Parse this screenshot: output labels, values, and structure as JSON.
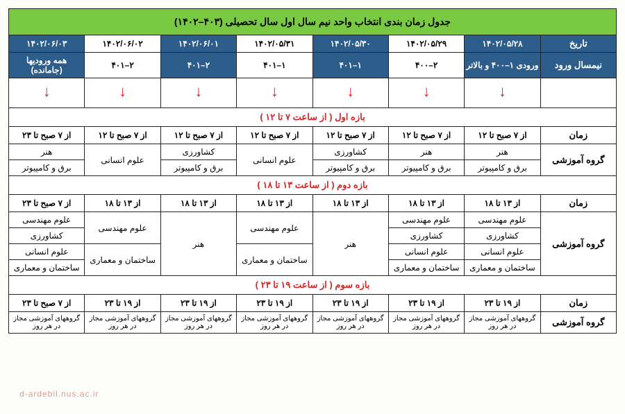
{
  "title": "جدول زمان بندی انتخاب واحد نیم سال اول سال تحصیلی (۴۰۳–۱۴۰۲)",
  "header1_label": "تاریخ",
  "header2_label": "نیمسال ورود",
  "arrow_glyph": "↓",
  "dates": [
    {
      "text": "۱۴۰۲/۰۵/۲۸",
      "dark": true
    },
    {
      "text": "۱۴۰۲/۰۵/۲۹",
      "dark": false
    },
    {
      "text": "۱۴۰۲/۰۵/۳۰",
      "dark": true
    },
    {
      "text": "۱۴۰۲/۰۵/۳۱",
      "dark": false
    },
    {
      "text": "۱۴۰۲/۰۶/۰۱",
      "dark": true
    },
    {
      "text": "۱۴۰۲/۰۶/۰۲",
      "dark": false
    },
    {
      "text": "۱۴۰۲/۰۶/۰۳",
      "dark": true
    }
  ],
  "entries": [
    {
      "text": "ورودی ۱–۴۰۰ و بالاتر",
      "dark": true
    },
    {
      "text": "۲–۴۰۰",
      "dark": false
    },
    {
      "text": "۱–۴۰۱",
      "dark": true
    },
    {
      "text": "۱–۴۰۱",
      "dark": false
    },
    {
      "text": "۲–۴۰۱",
      "dark": true
    },
    {
      "text": "۲–۴۰۱",
      "dark": false
    },
    {
      "text": "همه ورودیها (جامانده)",
      "dark": true
    }
  ],
  "time_label": "زمان",
  "group_label": "گروه آموزشی",
  "section1": {
    "title": "بازه اول ( از ساعت ۷ تا ۱۲ )",
    "times": [
      "از ۷ صبح تا ۱۲",
      "از ۷ صبح تا ۱۲",
      "از ۷ صبح تا ۱۲",
      "از ۷ صبح تا ۱۲",
      "از ۷ صبح تا ۱۲",
      "از ۷ صبح تا ۱۲",
      "از ۷ صبح تا ۲۳"
    ],
    "row1": {
      "c0": "هنر",
      "c1": "هنر",
      "c2": "کشاورزی",
      "c3_merged": "علوم انسانی",
      "c4": "کشاورزی",
      "c5_merged": "علوم انسانی",
      "c6": "هنر"
    },
    "row2": {
      "c0": "برق و کامپیوتر",
      "c1": "برق و کامپیوتر",
      "c2": "برق و کامپیوتر",
      "c4": "برق و کامپیوتر",
      "c6": "برق و کامپیوتر"
    }
  },
  "section2": {
    "title": "بازه دوم ( از ساعت ۱۳ تا ۱۸ )",
    "times": [
      "از ۱۳ تا ۱۸",
      "از ۱۳ تا ۱۸",
      "از ۱۳ تا ۱۸",
      "از ۱۳ تا ۱۸",
      "از ۱۳ تا ۱۸",
      "از ۱۳ تا ۱۸",
      "از ۷ صبح تا ۲۳"
    ],
    "col0": [
      "علوم مهندسی",
      "کشاورزی",
      "علوم انسانی",
      "ساختمان و معماری"
    ],
    "col1": [
      "علوم مهندسی",
      "کشاورزی",
      "علوم انسانی",
      "ساختمان و معماری"
    ],
    "col2_merged": "هنر",
    "col3_top": "علوم مهندسی",
    "col3_bot": "ساختمان و معماری",
    "col4_merged": "هنر",
    "col5_top": "علوم مهندسی",
    "col5_bot": "ساختمان و معماری",
    "col6": [
      "علوم مهندسی",
      "کشاورزی",
      "علوم انسانی",
      "ساختمان و معماری"
    ]
  },
  "section3": {
    "title": "بازه سوم ( از ساعت ۱۹ تا ۲۳ )",
    "times": [
      "از ۱۹ تا ۲۳",
      "از ۱۹ تا ۲۳",
      "از ۱۹ تا ۲۳",
      "از ۱۹ تا ۲۳",
      "از ۱۹ تا ۲۳",
      "از ۱۹ تا ۲۳",
      "از ۷ صبح تا ۲۳"
    ],
    "group_text": "گروههای آموزشی مجاز در هر روز"
  },
  "watermark": "d-ardebil.nus.ac.ir",
  "colors": {
    "green": "#7ac943",
    "navy": "#2d5d8a",
    "red": "#d62323",
    "border": "#222"
  }
}
